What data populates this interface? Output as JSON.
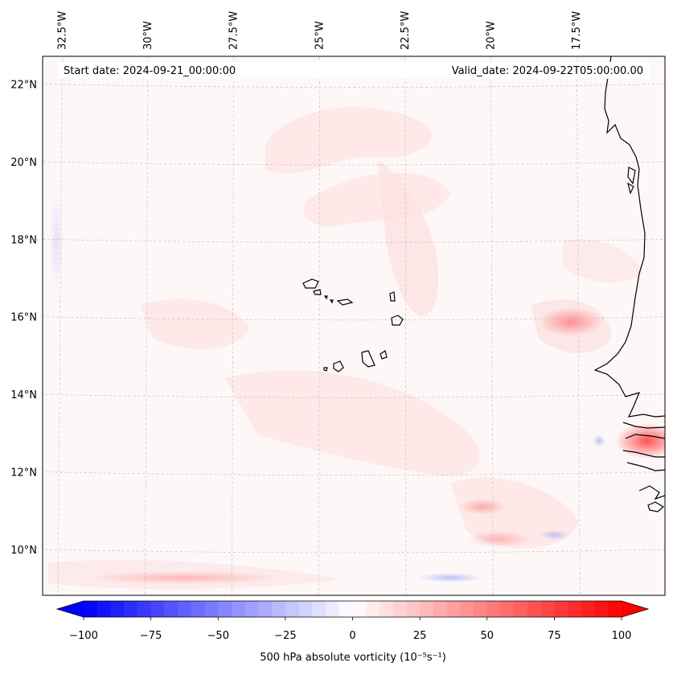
{
  "map": {
    "start_date": "Start date: 2024-09-21_00:00:00",
    "valid_date": "Valid_date: 2024-09-22T05:00:00.00",
    "extent": {
      "lon_min": -33.0,
      "lon_max": -15.0,
      "lat_min": 8.9,
      "lat_max": 22.8
    },
    "lon_ticks": [
      {
        "value": -32.5,
        "label": "32.5°W"
      },
      {
        "value": -30.0,
        "label": "30°W"
      },
      {
        "value": -27.5,
        "label": "27.5°W"
      },
      {
        "value": -25.0,
        "label": "25°W"
      },
      {
        "value": -22.5,
        "label": "22.5°W"
      },
      {
        "value": -20.0,
        "label": "20°W"
      },
      {
        "value": -17.5,
        "label": "17.5°W"
      }
    ],
    "lat_ticks": [
      {
        "value": 22,
        "label": "22°N"
      },
      {
        "value": 20,
        "label": "20°N"
      },
      {
        "value": 18,
        "label": "18°N"
      },
      {
        "value": 16,
        "label": "16°N"
      },
      {
        "value": 14,
        "label": "14°N"
      },
      {
        "value": 12,
        "label": "12°N"
      },
      {
        "value": 10,
        "label": "10°N"
      }
    ],
    "field": "500 hPa absolute vorticity",
    "colors": {
      "background": "#fdf7f7",
      "coastline": "#000000",
      "gridline": "#b8b8b8"
    }
  },
  "colorbar": {
    "label": "500 hPa absolute vorticity (10⁻⁵s⁻¹)",
    "min": -100,
    "max": 100,
    "levels": 40,
    "ticks": [
      {
        "value": -100,
        "label": "−100"
      },
      {
        "value": -75,
        "label": "−75"
      },
      {
        "value": -50,
        "label": "−50"
      },
      {
        "value": -25,
        "label": "−25"
      },
      {
        "value": 0,
        "label": "0"
      },
      {
        "value": 25,
        "label": "25"
      },
      {
        "value": 50,
        "label": "50"
      },
      {
        "value": 75,
        "label": "75"
      },
      {
        "value": 100,
        "label": "100"
      }
    ],
    "colors": {
      "negative": "#0000ff",
      "zero": "#ffffff",
      "positive": "#ff0000"
    }
  }
}
